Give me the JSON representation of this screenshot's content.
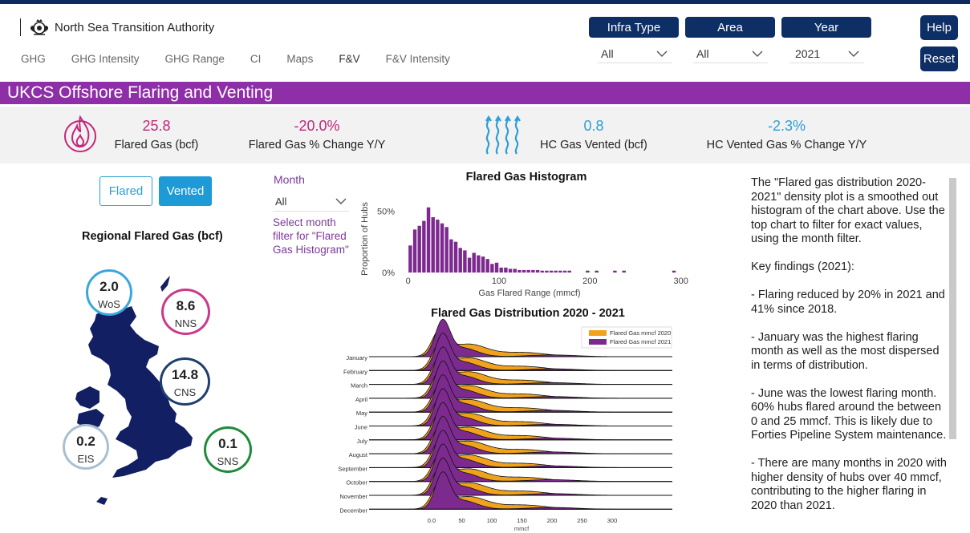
{
  "brand": {
    "name": "North Sea Transition Authority",
    "logo": "royal-crest-icon"
  },
  "nav": {
    "tabs": [
      "GHG",
      "GHG Intensity",
      "GHG Range",
      "CI",
      "Maps",
      "F&V",
      "F&V Intensity"
    ],
    "active": "F&V"
  },
  "filters": {
    "infra": {
      "label": "Infra Type",
      "value": "All"
    },
    "area": {
      "label": "Area",
      "value": "All"
    },
    "year": {
      "label": "Year",
      "value": "2021"
    }
  },
  "buttons": {
    "help": "Help",
    "reset": "Reset"
  },
  "banner": {
    "title": "UKCS Offshore Flaring and Venting"
  },
  "kpis": [
    {
      "value": "25.8",
      "label": "Flared Gas (bcf)",
      "color": "#c2267b"
    },
    {
      "value": "-20.0%",
      "label": "Flared Gas % Change Y/Y",
      "color": "#c2267b"
    },
    {
      "value": "0.8",
      "label": "HC Gas Vented (bcf)",
      "color": "#2d9fd4"
    },
    {
      "value": "-2.3%",
      "label": "HC Vented Gas % Change Y/Y",
      "color": "#2d9fd4"
    }
  ],
  "toggles": {
    "flared": "Flared",
    "vented": "Vented"
  },
  "regional": {
    "title": "Regional Flared Gas (bcf)",
    "regions": [
      {
        "name": "WoS",
        "value": "2.0",
        "color": "#3aa7dc"
      },
      {
        "name": "NNS",
        "value": "8.6",
        "color": "#c93a8b"
      },
      {
        "name": "CNS",
        "value": "14.8",
        "color": "#1f3f6e"
      },
      {
        "name": "EIS",
        "value": "0.2",
        "color": "#a9bfd0"
      },
      {
        "name": "SNS",
        "value": "0.1",
        "color": "#1f8a3b"
      }
    ]
  },
  "month_filter": {
    "label": "Month",
    "value": "All",
    "note": "Select month filter for \"Flared Gas Histogram\""
  },
  "chart_data": [
    {
      "type": "bar",
      "title": "Flared Gas Histogram",
      "xlabel": "Gas Flared Range (mmcf)",
      "ylabel": "Proportion of Hubs",
      "x_ticks": [
        "0",
        "100",
        "200",
        "300"
      ],
      "y_ticks": [
        "0%",
        "50%"
      ],
      "xlim": [
        -5,
        310
      ],
      "ylim": [
        0,
        60
      ],
      "bin_width": 5,
      "bin_starts": [
        0,
        5,
        10,
        15,
        20,
        25,
        30,
        35,
        40,
        45,
        50,
        55,
        60,
        65,
        70,
        75,
        80,
        85,
        90,
        95,
        100,
        105,
        110,
        115,
        120,
        125,
        130,
        135,
        140,
        145,
        150,
        155,
        160,
        165,
        170,
        175,
        195,
        205,
        225,
        235,
        290
      ],
      "values": [
        22,
        35,
        38,
        42,
        53,
        45,
        43,
        40,
        37,
        27,
        25,
        20,
        18,
        12,
        16,
        14,
        13,
        11,
        7,
        8,
        4,
        4,
        3,
        3,
        2,
        2,
        2,
        2,
        2,
        1.5,
        1.5,
        1.5,
        1.5,
        1.5,
        1.5,
        1.5,
        1.5,
        1.5,
        1.5,
        1.5,
        1.5
      ],
      "color": "#7d2a8f"
    },
    {
      "type": "area",
      "title": "Flared Gas Distribution 2020 - 2021",
      "xlabel": "mmcf",
      "x_ticks": [
        "0.0",
        "50",
        "100",
        "150",
        "200",
        "250",
        "300"
      ],
      "categories": [
        "January",
        "February",
        "March",
        "April",
        "May",
        "June",
        "July",
        "August",
        "September",
        "October",
        "November",
        "December"
      ],
      "legend": [
        "Flared Gas mmcf 2020",
        "Flared Gas mmcf 2021"
      ],
      "legend_position": "top-right",
      "colors": [
        "#f0a21c",
        "#7d2a8f"
      ]
    }
  ],
  "notes": {
    "paragraphs": [
      "The \"Flared gas distribution 2020-2021\" density plot is a smoothed out histogram of the chart above. Use the top chart to filter for exact values, using the month filter.",
      "Key findings (2021):",
      "- Flaring reduced by 20% in 2021 and 41% since 2018.",
      "- January was the highest flaring month as well as the most dispersed in terms of distribution.",
      "- June was the lowest flaring month. 60% hubs flared around the between 0 and 25 mmcf. This is likely due to Forties Pipeline System maintenance.",
      "- There are many months in 2020 with higher density of hubs over 40 mmcf, contributing to the higher flaring in 2020 than 2021."
    ]
  }
}
